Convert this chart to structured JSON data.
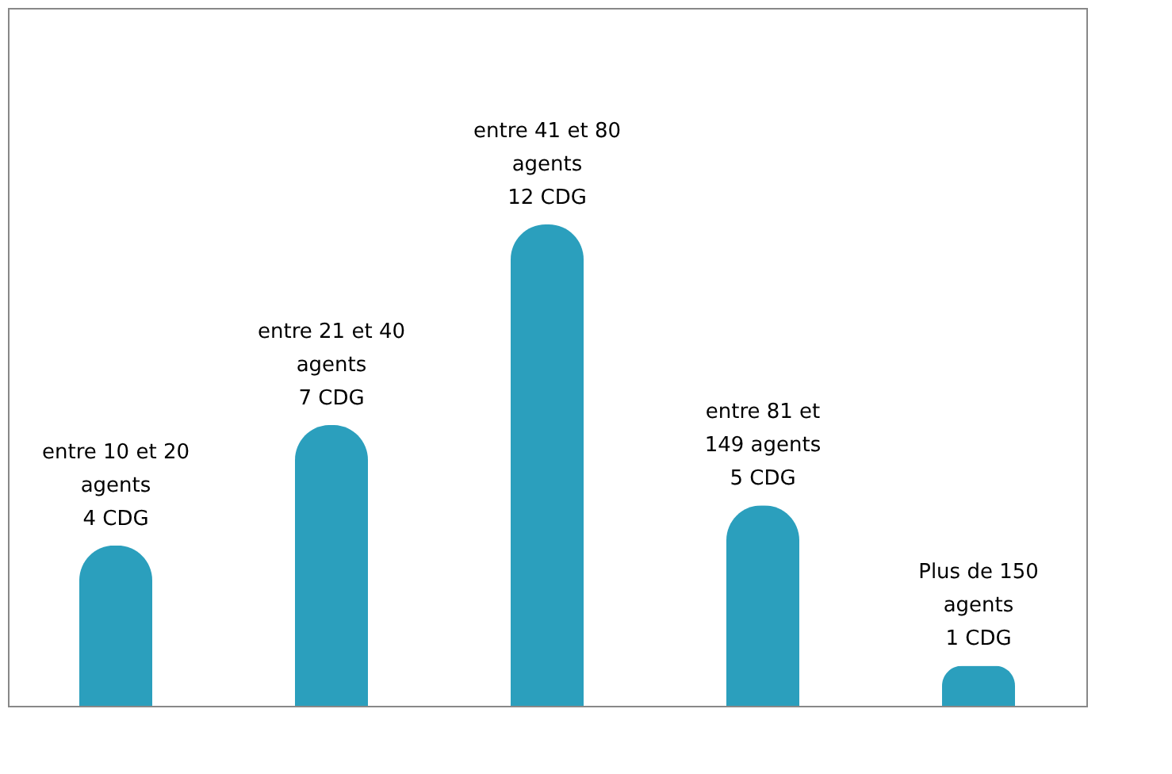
{
  "chart_data": {
    "type": "bar",
    "categories": [
      null,
      null,
      null,
      null,
      null
    ],
    "values": [
      4,
      7,
      12,
      5,
      1
    ],
    "value_labels": [
      "entre 10 et 20\nagents\n4 CDG",
      "entre 21 et 40\nagents\n7 CDG",
      "entre 41 et 80\nagents\n12 CDG",
      "entre 81 et\n149 agents\n5 CDG",
      "Plus de 150\nagents\n1 CDG"
    ],
    "color": "#2b9fbd",
    "grid": false
  }
}
